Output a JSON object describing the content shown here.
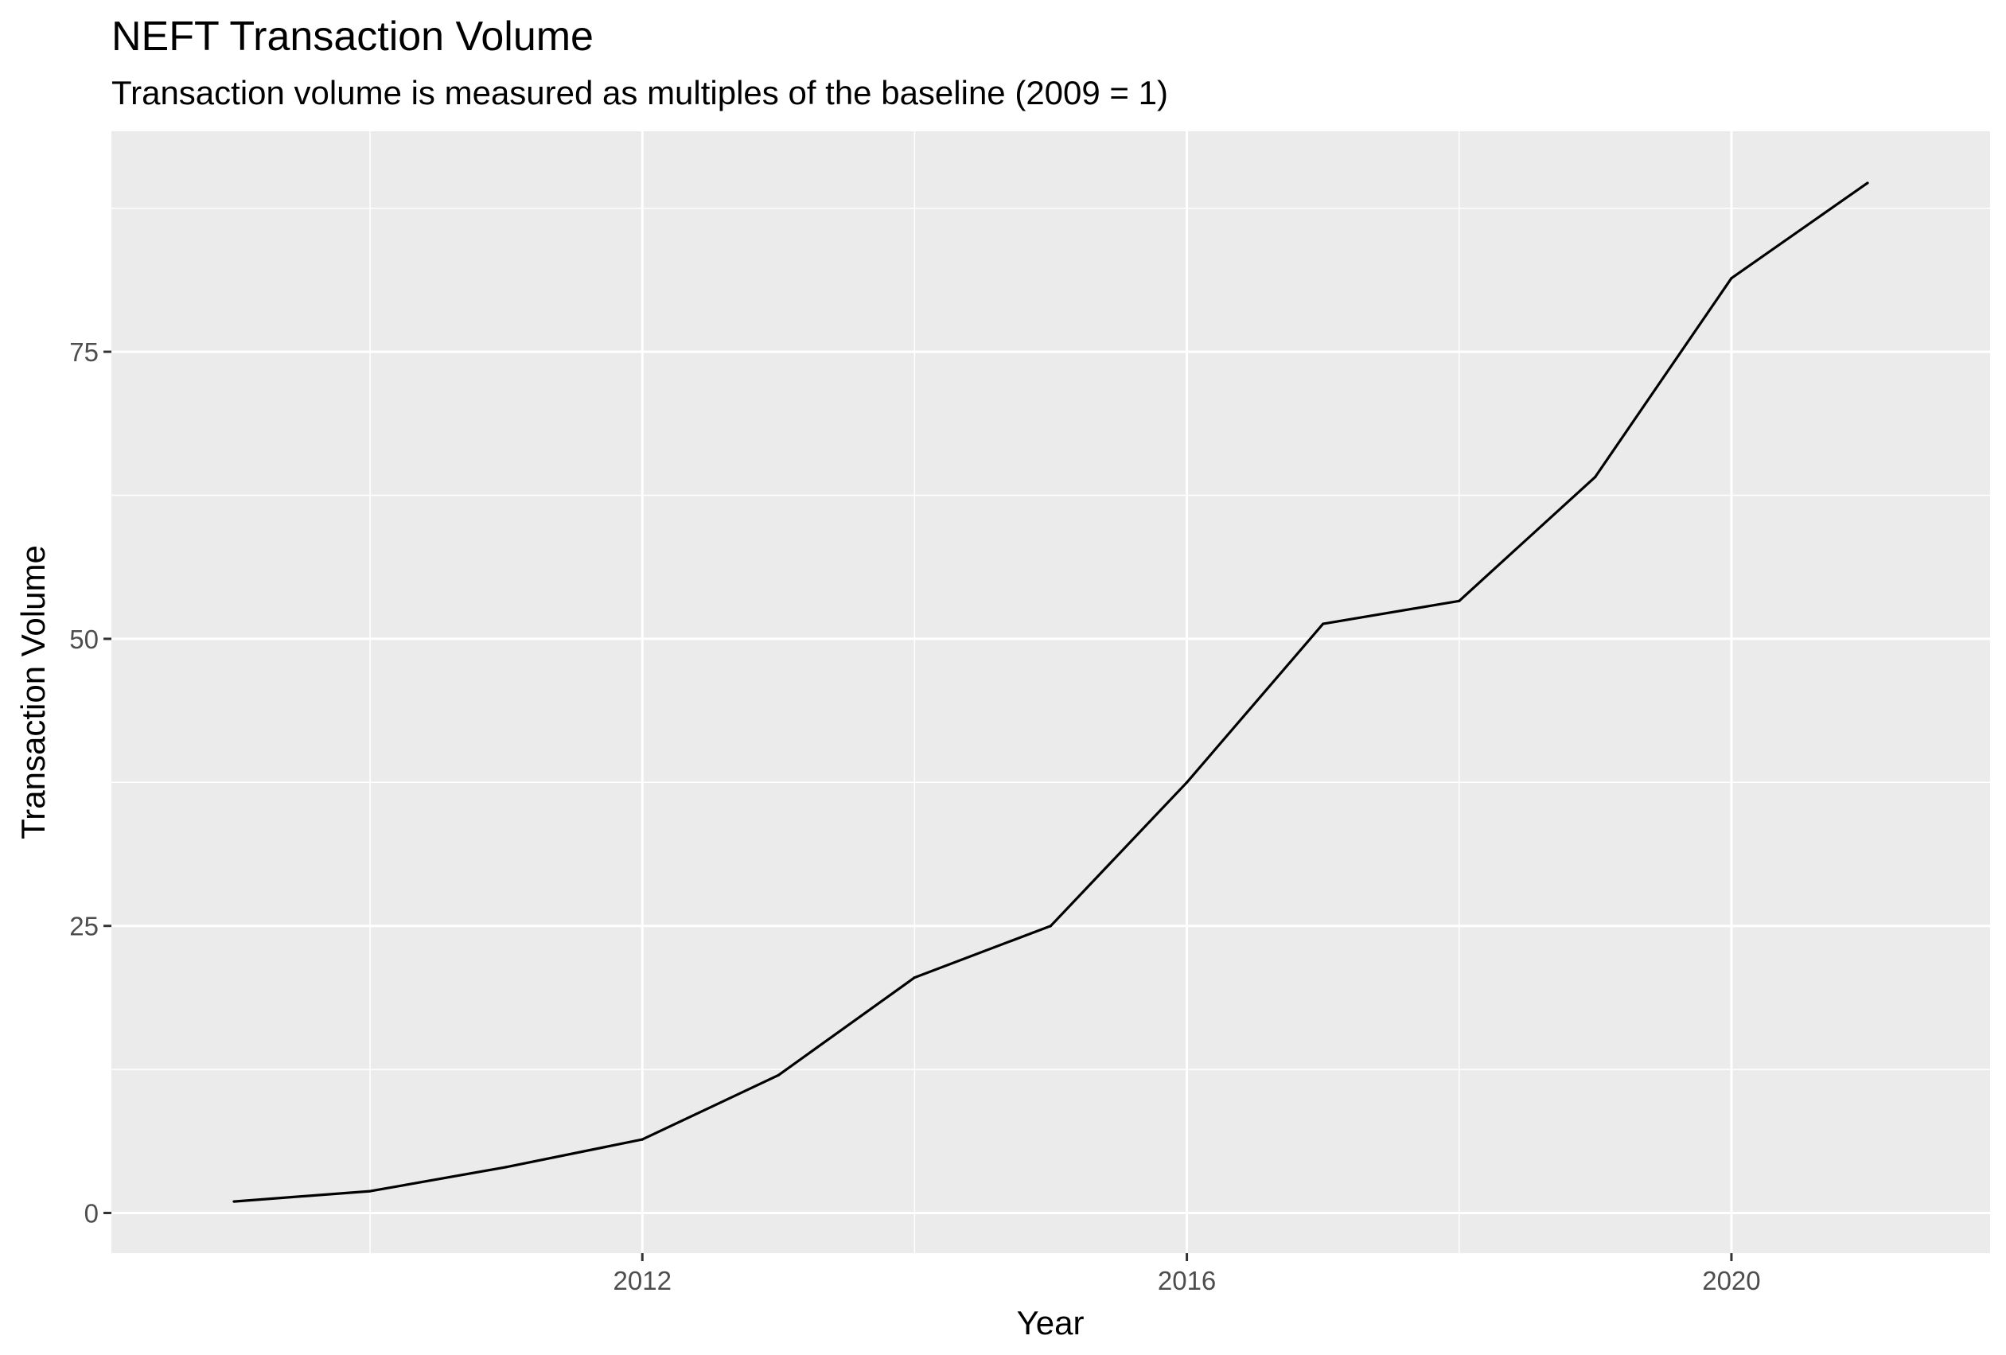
{
  "chart_data": {
    "type": "line",
    "title": "NEFT Transaction Volume",
    "subtitle": "Transaction volume is measured as multiples of the baseline (2009 = 1)",
    "xlabel": "Year",
    "ylabel": "Transaction Volume",
    "x": [
      2009,
      2010,
      2011,
      2012,
      2013,
      2014,
      2015,
      2016,
      2017,
      2018,
      2019,
      2020,
      2021
    ],
    "series": [
      {
        "values": [
          1.0,
          1.9,
          4.0,
          6.4,
          12.0,
          20.5,
          25.0,
          37.5,
          51.3,
          53.3,
          64.1,
          81.4,
          89.7
        ]
      }
    ],
    "xlim": [
      2008.1,
      2021.9
    ],
    "ylim": [
      -3.5,
      94.2
    ],
    "x_ticks": [
      2012,
      2016,
      2020
    ],
    "x_tick_labels": [
      "2012",
      "2016",
      "2020"
    ],
    "x_minor_ticks": [
      2010,
      2014,
      2018
    ],
    "y_ticks": [
      0,
      25,
      50,
      75
    ],
    "y_tick_labels": [
      "0",
      "25",
      "50",
      "75"
    ],
    "y_minor_ticks": [
      12.5,
      37.5,
      62.5,
      87.5
    ],
    "grid": true,
    "legend": "none",
    "colors": {
      "panel_background": "#ebebeb",
      "grid_line": "#ffffff",
      "line": "#000000",
      "tick_text": "#4d4d4d",
      "tick_mark": "#333333"
    }
  }
}
